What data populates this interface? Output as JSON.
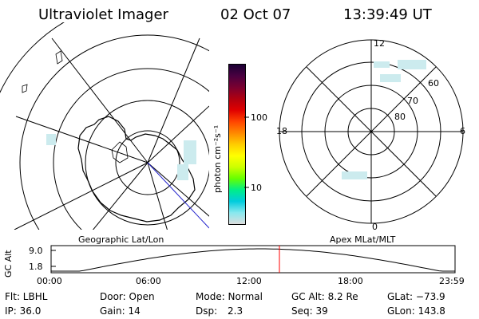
{
  "header": {
    "title": "Ultraviolet Imager",
    "date": "02 Oct 07",
    "time": "13:39:49 UT"
  },
  "left_panel": {
    "label": "Geographic Lat/Lon"
  },
  "right_panel": {
    "label": "Apex MLat/MLT",
    "clock_labels": {
      "top": "12",
      "left": "18",
      "right": "6",
      "bottom": "0"
    },
    "lat_labels": [
      "80",
      "70",
      "60"
    ]
  },
  "colorbar": {
    "unit_label": "photon cm⁻²s⁻¹",
    "ticks": [
      "100",
      "10"
    ],
    "colors": [
      "#1a0033",
      "#4a0040",
      "#7a0030",
      "#b00010",
      "#e00000",
      "#ff4400",
      "#ff8800",
      "#ffcc00",
      "#ffff00",
      "#ccff00",
      "#66ff00",
      "#00ee88",
      "#00ccdd",
      "#88e8ee",
      "#dddddd"
    ]
  },
  "altitude_plot": {
    "ylabel": "GC Alt",
    "yticks": [
      "9.0",
      "1.8"
    ],
    "xticks": [
      "00:00",
      "06:00",
      "12:00",
      "18:00",
      "23:59"
    ],
    "current_marker_color": "#ff0000"
  },
  "info": {
    "row1": {
      "flt": "Flt: LBHL",
      "door": "Door: Open",
      "mode": "Mode: Normal",
      "gcalt": "GC Alt: 8.2 Re",
      "glat": "GLat: −73.9"
    },
    "row2": {
      "ip": "IP: 36.0",
      "gain": "Gain: 14",
      "dsp_label": "Dsp:",
      "dsp_value": "2.3",
      "seq": "Seq: 39",
      "glon": "GLon: 143.8"
    }
  }
}
